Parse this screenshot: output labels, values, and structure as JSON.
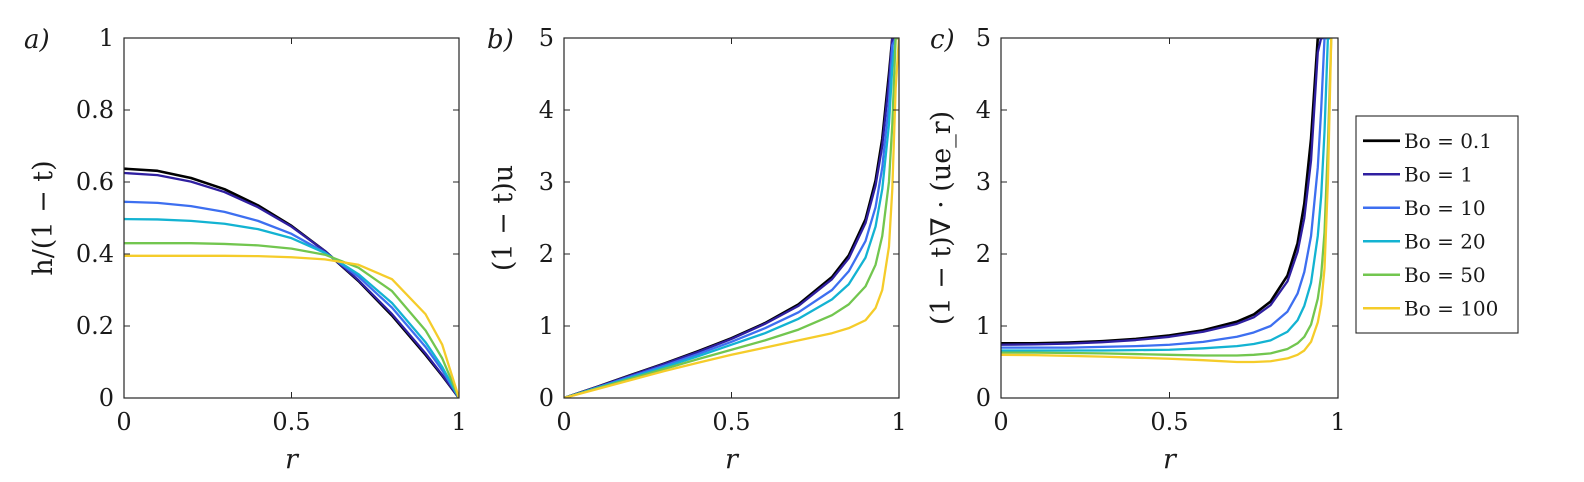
{
  "chart_data": [
    {
      "type": "line",
      "panel_label": "a)",
      "xlabel": "r",
      "ylabel": "h/(1 − t)",
      "xlim": [
        0,
        1
      ],
      "ylim": [
        0,
        1
      ],
      "xticks": [
        "0",
        "0.5",
        "1"
      ],
      "yticks": [
        "0",
        "0.2",
        "0.4",
        "0.6",
        "0.8",
        "1"
      ],
      "x": [
        0,
        0.1,
        0.2,
        0.3,
        0.4,
        0.5,
        0.6,
        0.7,
        0.8,
        0.9,
        0.95,
        1.0
      ],
      "series": [
        {
          "name": "Bo = 0.1",
          "values": [
            0.637,
            0.631,
            0.611,
            0.58,
            0.535,
            0.478,
            0.408,
            0.325,
            0.229,
            0.12,
            0.062,
            0.0
          ]
        },
        {
          "name": "Bo = 1",
          "values": [
            0.625,
            0.619,
            0.601,
            0.572,
            0.53,
            0.476,
            0.408,
            0.327,
            0.233,
            0.124,
            0.064,
            0.0
          ]
        },
        {
          "name": "Bo = 10",
          "values": [
            0.545,
            0.542,
            0.533,
            0.517,
            0.492,
            0.456,
            0.404,
            0.337,
            0.251,
            0.142,
            0.077,
            0.0
          ]
        },
        {
          "name": "Bo = 20",
          "values": [
            0.497,
            0.496,
            0.492,
            0.484,
            0.469,
            0.444,
            0.403,
            0.344,
            0.264,
            0.155,
            0.086,
            0.0
          ]
        },
        {
          "name": "Bo = 50",
          "values": [
            0.43,
            0.43,
            0.43,
            0.428,
            0.424,
            0.415,
            0.398,
            0.362,
            0.297,
            0.188,
            0.11,
            0.0
          ]
        },
        {
          "name": "Bo = 100",
          "values": [
            0.395,
            0.395,
            0.395,
            0.395,
            0.394,
            0.391,
            0.385,
            0.37,
            0.33,
            0.233,
            0.148,
            0.0
          ]
        }
      ]
    },
    {
      "type": "line",
      "panel_label": "b)",
      "xlabel": "r",
      "ylabel": "(1 − t)u",
      "xlim": [
        0,
        1
      ],
      "ylim": [
        0,
        5
      ],
      "xticks": [
        "0",
        "0.5",
        "1"
      ],
      "yticks": [
        "0",
        "1",
        "2",
        "3",
        "4",
        "5"
      ],
      "x": [
        0,
        0.1,
        0.2,
        0.3,
        0.4,
        0.5,
        0.6,
        0.7,
        0.8,
        0.85,
        0.9,
        0.93,
        0.95,
        0.97,
        0.98,
        0.99,
        1.0
      ],
      "series": [
        {
          "name": "Bo = 0.1",
          "values": [
            0,
            0.157,
            0.32,
            0.48,
            0.65,
            0.83,
            1.04,
            1.3,
            1.68,
            1.98,
            2.48,
            3.02,
            3.6,
            4.5,
            5.0,
            5.0,
            5.0
          ]
        },
        {
          "name": "Bo = 1",
          "values": [
            0,
            0.155,
            0.315,
            0.475,
            0.64,
            0.82,
            1.03,
            1.28,
            1.65,
            1.94,
            2.43,
            2.95,
            3.5,
            4.4,
            5.0,
            5.0,
            5.0
          ]
        },
        {
          "name": "Bo = 10",
          "values": [
            0,
            0.148,
            0.3,
            0.45,
            0.61,
            0.78,
            0.97,
            1.19,
            1.5,
            1.76,
            2.18,
            2.65,
            3.2,
            4.1,
            4.9,
            5.0,
            5.0
          ]
        },
        {
          "name": "Bo = 20",
          "values": [
            0,
            0.142,
            0.285,
            0.43,
            0.58,
            0.74,
            0.9,
            1.1,
            1.37,
            1.58,
            1.95,
            2.38,
            2.9,
            3.8,
            4.6,
            5.0,
            5.0
          ]
        },
        {
          "name": "Bo = 50",
          "values": [
            0,
            0.135,
            0.27,
            0.405,
            0.54,
            0.67,
            0.8,
            0.95,
            1.15,
            1.3,
            1.55,
            1.85,
            2.25,
            3.0,
            3.8,
            5.0,
            5.0
          ]
        },
        {
          "name": "Bo = 100",
          "values": [
            0,
            0.125,
            0.25,
            0.375,
            0.49,
            0.6,
            0.7,
            0.8,
            0.9,
            0.97,
            1.08,
            1.25,
            1.5,
            2.1,
            2.9,
            4.3,
            5.0
          ]
        }
      ]
    },
    {
      "type": "line",
      "panel_label": "c)",
      "xlabel": "r",
      "ylabel": "(1 − t)∇ · (ue_r)",
      "xlim": [
        0,
        1
      ],
      "ylim": [
        0,
        5
      ],
      "xticks": [
        "0",
        "0.5",
        "1"
      ],
      "yticks": [
        "0",
        "1",
        "2",
        "3",
        "4",
        "5"
      ],
      "x": [
        0,
        0.1,
        0.2,
        0.3,
        0.4,
        0.5,
        0.6,
        0.7,
        0.75,
        0.8,
        0.85,
        0.88,
        0.9,
        0.92,
        0.94,
        0.95,
        0.96,
        0.97,
        0.98
      ],
      "series": [
        {
          "name": "Bo = 0.1",
          "values": [
            0.76,
            0.76,
            0.77,
            0.79,
            0.82,
            0.87,
            0.94,
            1.06,
            1.16,
            1.34,
            1.7,
            2.15,
            2.7,
            3.6,
            5.0,
            5.0,
            5.0,
            5.0,
            5.0
          ]
        },
        {
          "name": "Bo = 1",
          "values": [
            0.74,
            0.745,
            0.755,
            0.775,
            0.805,
            0.85,
            0.92,
            1.03,
            1.12,
            1.29,
            1.62,
            2.03,
            2.5,
            3.3,
            4.8,
            5.0,
            5.0,
            5.0,
            5.0
          ]
        },
        {
          "name": "Bo = 10",
          "values": [
            0.7,
            0.7,
            0.7,
            0.71,
            0.72,
            0.74,
            0.78,
            0.85,
            0.91,
            1.0,
            1.2,
            1.45,
            1.75,
            2.25,
            3.2,
            4.0,
            5.0,
            5.0,
            5.0
          ]
        },
        {
          "name": "Bo = 20",
          "values": [
            0.66,
            0.66,
            0.66,
            0.66,
            0.665,
            0.67,
            0.69,
            0.72,
            0.75,
            0.8,
            0.92,
            1.08,
            1.28,
            1.6,
            2.25,
            2.8,
            3.7,
            5.0,
            5.0
          ]
        },
        {
          "name": "Bo = 50",
          "values": [
            0.63,
            0.63,
            0.625,
            0.62,
            0.61,
            0.6,
            0.59,
            0.59,
            0.6,
            0.62,
            0.68,
            0.76,
            0.85,
            1.02,
            1.38,
            1.7,
            2.3,
            3.5,
            5.0
          ]
        },
        {
          "name": "Bo = 100",
          "values": [
            0.6,
            0.595,
            0.585,
            0.575,
            0.56,
            0.545,
            0.525,
            0.5,
            0.5,
            0.51,
            0.55,
            0.6,
            0.66,
            0.78,
            1.05,
            1.3,
            1.8,
            3.0,
            5.0
          ]
        }
      ]
    }
  ],
  "legend": {
    "placement": "right",
    "items": [
      {
        "label": "Bo = 0.1",
        "color": "#000000"
      },
      {
        "label": "Bo = 1",
        "color": "#2f1fa0"
      },
      {
        "label": "Bo = 10",
        "color": "#3d6ff0"
      },
      {
        "label": "Bo = 20",
        "color": "#13b3d2"
      },
      {
        "label": "Bo = 50",
        "color": "#72c64f"
      },
      {
        "label": "Bo = 100",
        "color": "#f5cc2a"
      }
    ]
  }
}
